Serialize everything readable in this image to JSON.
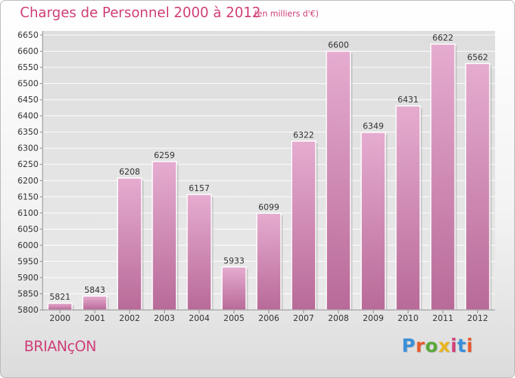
{
  "header": {
    "title": "Charges de Personnel 2000 à 2012",
    "subtitle": "(en milliers d'€)"
  },
  "footer": {
    "place": "BRIANçON",
    "logo": "Proxiti",
    "logo_colors": [
      "#3a8fd9",
      "#e85a2c",
      "#5aa83a",
      "#e8b61e",
      "#d0407a",
      "#3a8fd9",
      "#e85a2c"
    ]
  },
  "chart_data": {
    "type": "bar",
    "title": "Charges de Personnel 2000 à 2012",
    "subtitle": "(en milliers d'€)",
    "categories": [
      "2000",
      "2001",
      "2002",
      "2003",
      "2004",
      "2005",
      "2006",
      "2007",
      "2008",
      "2009",
      "2010",
      "2011",
      "2012"
    ],
    "values": [
      5821,
      5843,
      6208,
      6259,
      6157,
      5933,
      6099,
      6322,
      6600,
      6349,
      6431,
      6622,
      6562
    ],
    "ylim": [
      5800,
      6650
    ],
    "yticks": [
      5800,
      5850,
      5900,
      5950,
      6000,
      6050,
      6100,
      6150,
      6200,
      6250,
      6300,
      6350,
      6400,
      6450,
      6500,
      6550,
      6600,
      6650
    ],
    "grid": true,
    "bar_color": "#d67fb0",
    "bar_color_light": "#e6acd0"
  }
}
